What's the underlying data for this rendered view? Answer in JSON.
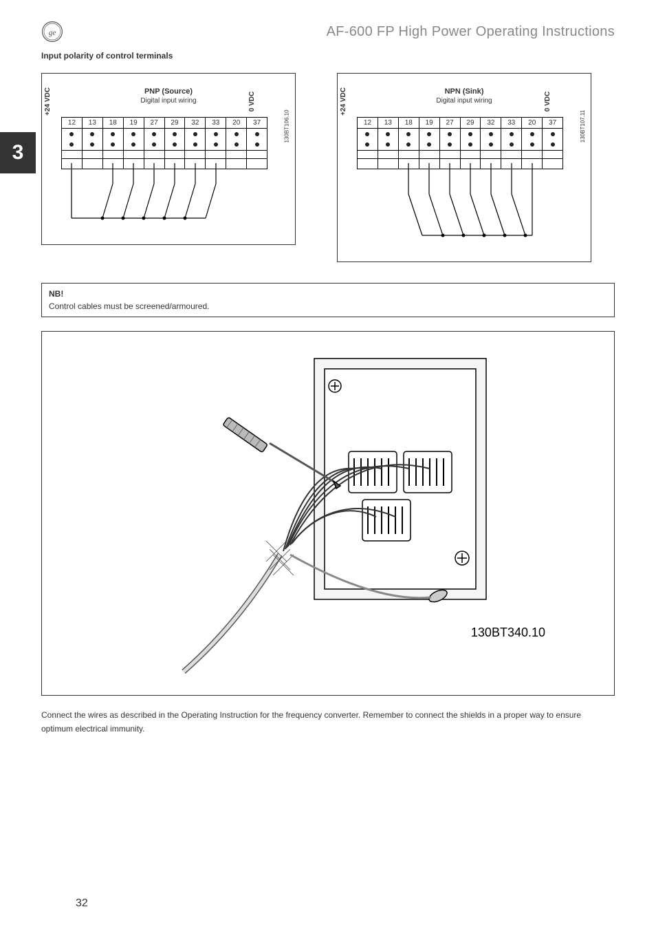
{
  "header": {
    "doc_title": "AF-600 FP High Power Operating Instructions",
    "logo_name": "ge-monogram"
  },
  "chapter_number": "3",
  "section_heading": "Input polarity of control terminals",
  "diagrams": {
    "left": {
      "voltage_left": "+24 VDC",
      "voltage_right": "0 VDC",
      "config_title": "PNP (Source)",
      "config_sub": "Digital input wiring",
      "code": "130BT106.10",
      "terminals": [
        "12",
        "13",
        "18",
        "19",
        "27",
        "29",
        "32",
        "33",
        "20",
        "37"
      ]
    },
    "right": {
      "voltage_left": "+24 VDC",
      "voltage_right": "0 VDC",
      "config_title": "NPN (Sink)",
      "config_sub": "Digital input wiring",
      "code": "130BT107.11",
      "terminals": [
        "12",
        "13",
        "18",
        "19",
        "27",
        "29",
        "32",
        "33",
        "20",
        "37"
      ]
    }
  },
  "nb_box": {
    "title": "NB!",
    "text": "Control cables must be  screened/armoured."
  },
  "figure": {
    "code": "130BT340.10"
  },
  "body_text": "Connect the wires as described in the Operating Instruction for the frequency converter. Remember to connect the shields in a proper way to ensure optimum electrical immunity.",
  "page_number": "32",
  "colors": {
    "text": "#333333",
    "title_grey": "#888888",
    "border": "#333333",
    "background": "#ffffff",
    "tab_bg": "#333333",
    "tab_fg": "#ffffff",
    "diagram_line": "#000000"
  },
  "typography": {
    "doc_title_size": 20,
    "doc_title_weight": 300,
    "heading_size": 12,
    "heading_weight": "bold",
    "body_size": 12,
    "chapter_size": 30
  }
}
